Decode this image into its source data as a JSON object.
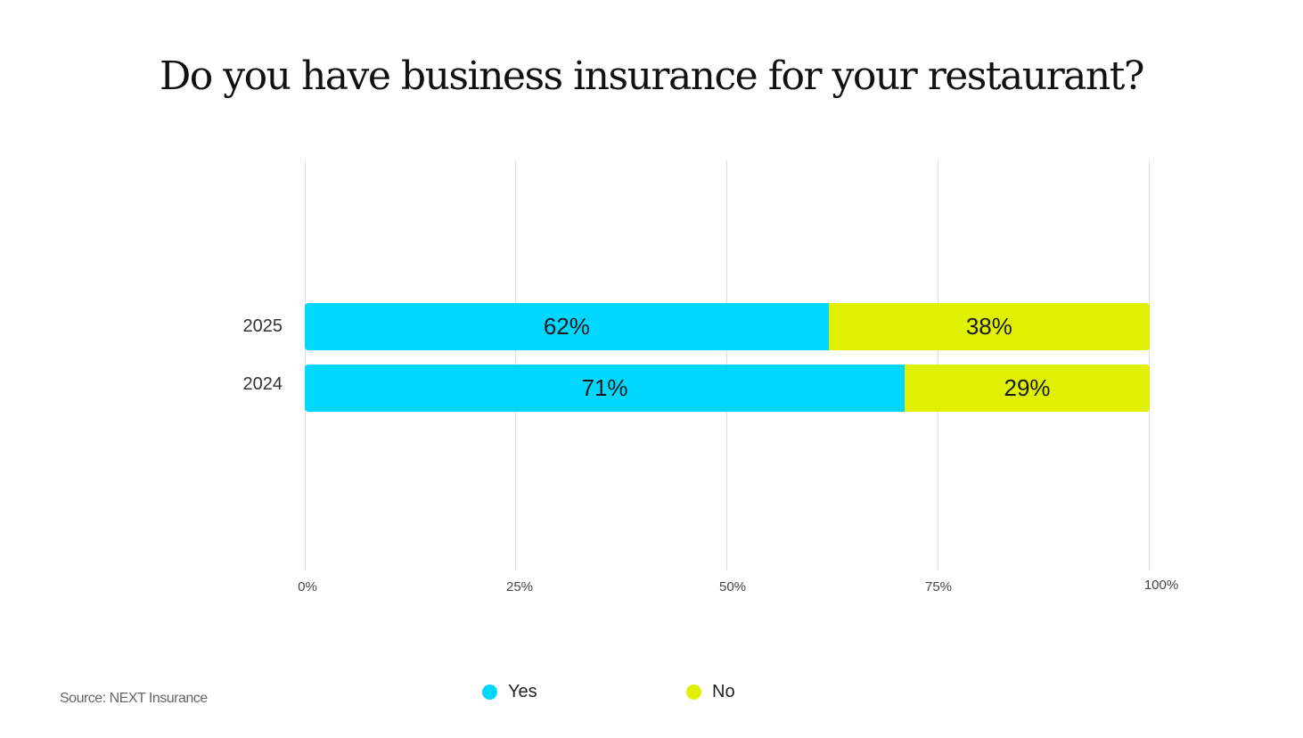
{
  "title": "Do you have business insurance for your restaurant?",
  "colors": {
    "yes": "#00d7ff",
    "no": "#dff000"
  },
  "rows": [
    {
      "label": "2025",
      "yes": 62,
      "no": 38,
      "yes_label": "62%",
      "no_label": "38%"
    },
    {
      "label": "2024",
      "yes": 71,
      "no": 29,
      "yes_label": "71%",
      "no_label": "29%"
    }
  ],
  "x_ticks": [
    "0%",
    "25%",
    "50%",
    "75%",
    "100%"
  ],
  "legend": {
    "yes": "Yes",
    "no": "No"
  },
  "source": "Source: NEXT Insurance",
  "chart_data": {
    "type": "bar",
    "orientation": "horizontal",
    "stacked": true,
    "title": "Do you have business insurance for your restaurant?",
    "categories": [
      "2025",
      "2024"
    ],
    "series": [
      {
        "name": "Yes",
        "values": [
          62,
          71
        ],
        "color": "#00d7ff"
      },
      {
        "name": "No",
        "values": [
          38,
          29
        ],
        "color": "#dff000"
      }
    ],
    "xlabel": "",
    "ylabel": "",
    "xlim": [
      0,
      100
    ],
    "x_tick_labels": [
      "0%",
      "25%",
      "50%",
      "75%",
      "100%"
    ],
    "grid": "vertical",
    "legend_position": "bottom",
    "source": "Source: NEXT Insurance"
  }
}
